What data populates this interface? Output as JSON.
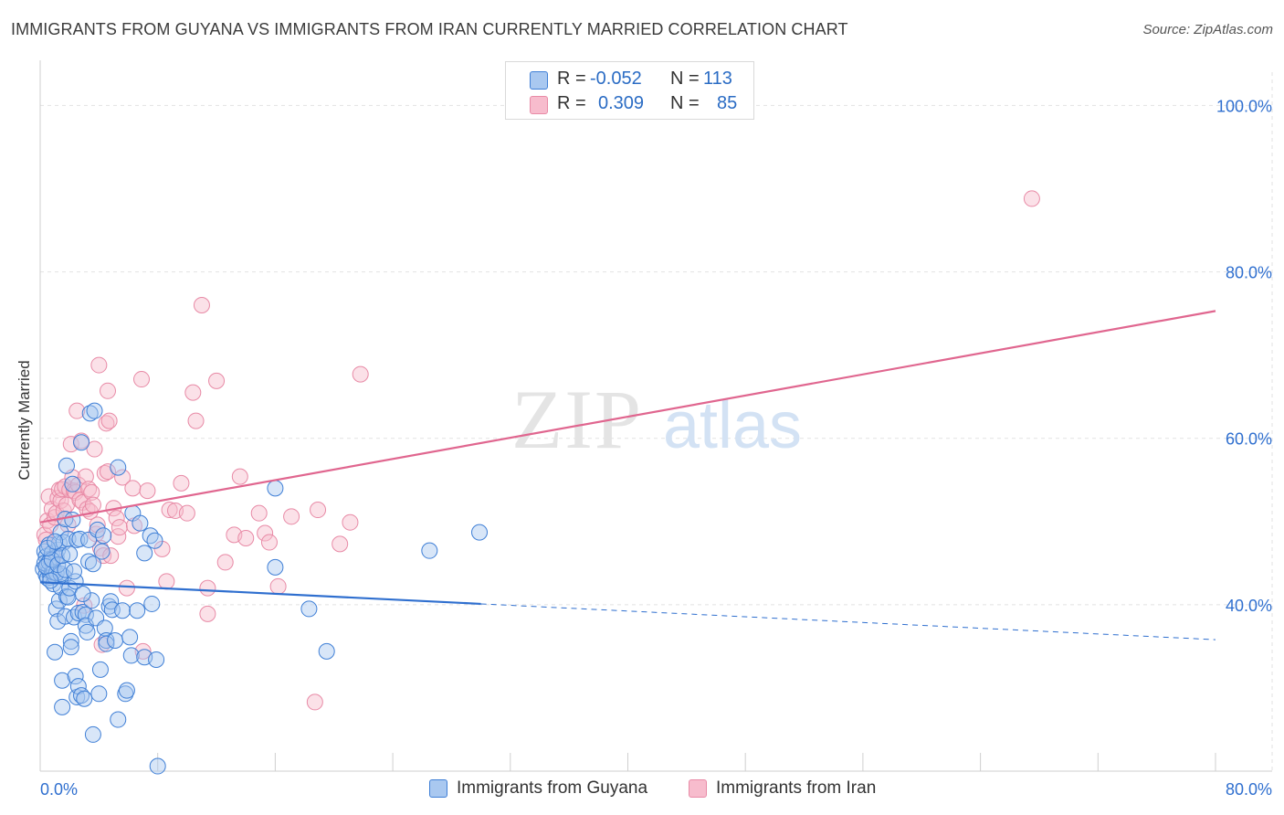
{
  "title": "IMMIGRANTS FROM GUYANA VS IMMIGRANTS FROM IRAN CURRENTLY MARRIED CORRELATION CHART",
  "source": "Source: ZipAtlas.com",
  "watermark": {
    "zip": "ZIP",
    "atlas": "atlas"
  },
  "legend": {
    "guyana": {
      "r_label": "R =",
      "r_value": "-0.052",
      "n_label": "N =",
      "n_value": "113"
    },
    "iran": {
      "r_label": "R =",
      "r_value": "0.309",
      "n_label": "N =",
      "n_value": "85"
    }
  },
  "colors": {
    "guyana_fill": "#a9c8f0",
    "guyana_stroke": "#3f7fd6",
    "guyana_line": "#2f6fcf",
    "iran_fill": "#f7bccd",
    "iran_stroke": "#e88aa6",
    "iran_line": "#e0668f",
    "axis_text": "#2f6fcf",
    "grid": "#e2e2e2"
  },
  "chart_data": {
    "type": "scatter",
    "title": "IMMIGRANTS FROM GUYANA VS IMMIGRANTS FROM IRAN CURRENTLY MARRIED CORRELATION CHART",
    "xlabel": "",
    "ylabel": "Currently Married",
    "xlim": [
      0,
      80
    ],
    "ylim": [
      20,
      104
    ],
    "x_tick_labels": [
      "0.0%",
      "80.0%"
    ],
    "y_tick_labels": [
      "40.0%",
      "60.0%",
      "80.0%",
      "100.0%"
    ],
    "y_ticks": [
      40,
      60,
      80,
      100
    ],
    "grid": true,
    "legend_position": "bottom",
    "series": [
      {
        "name": "Immigrants from Guyana",
        "points": [
          [
            0.2,
            44.3
          ],
          [
            0.3,
            46.4
          ],
          [
            0.4,
            45.8
          ],
          [
            0.4,
            43.6
          ],
          [
            0.5,
            44.9
          ],
          [
            0.5,
            43.2
          ],
          [
            0.6,
            47.2
          ],
          [
            0.6,
            44.1
          ],
          [
            0.7,
            43.3
          ],
          [
            0.7,
            45.5
          ],
          [
            0.8,
            44.0
          ],
          [
            0.8,
            46.2
          ],
          [
            0.9,
            42.5
          ],
          [
            0.9,
            44.4
          ],
          [
            1.0,
            43.4
          ],
          [
            1.0,
            34.3
          ],
          [
            1.1,
            45.7
          ],
          [
            1.1,
            39.5
          ],
          [
            1.2,
            38.0
          ],
          [
            1.2,
            46.6
          ],
          [
            1.3,
            40.5
          ],
          [
            1.3,
            47.4
          ],
          [
            1.4,
            42.1
          ],
          [
            1.4,
            48.7
          ],
          [
            1.5,
            30.9
          ],
          [
            1.5,
            27.7
          ],
          [
            1.6,
            43.4
          ],
          [
            1.6,
            47.5
          ],
          [
            1.7,
            38.6
          ],
          [
            1.7,
            50.3
          ],
          [
            1.8,
            41.0
          ],
          [
            1.8,
            56.7
          ],
          [
            1.9,
            40.9
          ],
          [
            1.9,
            47.9
          ],
          [
            2.0,
            42.0
          ],
          [
            2.1,
            35.6
          ],
          [
            2.1,
            34.9
          ],
          [
            2.2,
            50.2
          ],
          [
            2.2,
            54.5
          ],
          [
            2.3,
            38.5
          ],
          [
            2.4,
            42.8
          ],
          [
            2.4,
            31.4
          ],
          [
            2.5,
            47.8
          ],
          [
            2.5,
            28.9
          ],
          [
            2.6,
            39.0
          ],
          [
            2.6,
            30.2
          ],
          [
            2.7,
            47.9
          ],
          [
            2.8,
            29.1
          ],
          [
            2.8,
            59.5
          ],
          [
            2.9,
            39.1
          ],
          [
            3.0,
            28.7
          ],
          [
            3.1,
            38.8
          ],
          [
            3.1,
            37.5
          ],
          [
            3.2,
            36.7
          ],
          [
            3.3,
            47.8
          ],
          [
            3.3,
            45.2
          ],
          [
            3.4,
            63.0
          ],
          [
            3.5,
            40.5
          ],
          [
            3.6,
            24.4
          ],
          [
            3.7,
            63.3
          ],
          [
            3.8,
            38.4
          ],
          [
            3.9,
            49.0
          ],
          [
            4.0,
            29.3
          ],
          [
            4.1,
            32.2
          ],
          [
            4.2,
            46.4
          ],
          [
            4.3,
            48.3
          ],
          [
            4.4,
            37.2
          ],
          [
            4.5,
            35.7
          ],
          [
            4.5,
            35.3
          ],
          [
            4.7,
            39.8
          ],
          [
            4.8,
            40.4
          ],
          [
            4.9,
            39.4
          ],
          [
            5.1,
            35.7
          ],
          [
            5.3,
            26.2
          ],
          [
            5.3,
            56.5
          ],
          [
            5.6,
            39.3
          ],
          [
            5.8,
            29.3
          ],
          [
            5.9,
            29.7
          ],
          [
            6.1,
            36.1
          ],
          [
            6.2,
            33.9
          ],
          [
            6.3,
            51.0
          ],
          [
            6.6,
            39.3
          ],
          [
            6.8,
            49.8
          ],
          [
            7.1,
            46.2
          ],
          [
            7.1,
            33.7
          ],
          [
            7.5,
            48.3
          ],
          [
            7.6,
            40.1
          ],
          [
            7.9,
            33.4
          ],
          [
            7.8,
            47.7
          ],
          [
            16.0,
            44.5
          ],
          [
            16.0,
            54.0
          ],
          [
            18.3,
            39.5
          ],
          [
            19.5,
            34.4
          ],
          [
            26.5,
            46.5
          ],
          [
            29.9,
            48.7
          ],
          [
            8.0,
            20.6
          ],
          [
            0.3,
            45.0
          ],
          [
            0.6,
            45.1
          ],
          [
            0.9,
            43.9
          ],
          [
            1.1,
            43.8
          ],
          [
            1.4,
            43.7
          ],
          [
            0.4,
            44.6
          ],
          [
            0.8,
            45.4
          ],
          [
            1.2,
            44.8
          ],
          [
            0.5,
            46.8
          ],
          [
            1.0,
            47.6
          ],
          [
            1.7,
            44.2
          ],
          [
            2.3,
            44.0
          ],
          [
            1.5,
            45.9
          ],
          [
            0.7,
            42.9
          ],
          [
            2.0,
            46.1
          ],
          [
            2.9,
            41.3
          ],
          [
            3.6,
            44.9
          ]
        ],
        "trend": {
          "x0": 0,
          "y0": 42.7,
          "x1": 30,
          "y1": 40.1,
          "x_dashed_end": 80,
          "y_dashed_end": 35.8
        }
      },
      {
        "name": "Immigrants from Iran",
        "points": [
          [
            0.3,
            48.4
          ],
          [
            0.4,
            47.8
          ],
          [
            0.5,
            50.1
          ],
          [
            0.6,
            53.0
          ],
          [
            0.7,
            49.6
          ],
          [
            0.8,
            51.5
          ],
          [
            0.9,
            45.7
          ],
          [
            1.0,
            50.5
          ],
          [
            1.1,
            51.0
          ],
          [
            1.2,
            52.8
          ],
          [
            1.3,
            53.8
          ],
          [
            1.4,
            52.5
          ],
          [
            1.5,
            53.9
          ],
          [
            1.6,
            51.3
          ],
          [
            1.7,
            54.2
          ],
          [
            1.8,
            52.0
          ],
          [
            1.9,
            49.6
          ],
          [
            2.0,
            53.8
          ],
          [
            2.1,
            59.3
          ],
          [
            2.2,
            55.3
          ],
          [
            2.3,
            53.7
          ],
          [
            2.4,
            53.5
          ],
          [
            2.5,
            63.3
          ],
          [
            2.6,
            54.4
          ],
          [
            2.7,
            52.6
          ],
          [
            2.8,
            59.7
          ],
          [
            2.9,
            52.3
          ],
          [
            3.0,
            39.9
          ],
          [
            3.1,
            55.4
          ],
          [
            3.2,
            51.5
          ],
          [
            3.3,
            53.9
          ],
          [
            3.4,
            51.2
          ],
          [
            3.5,
            53.5
          ],
          [
            3.6,
            52.0
          ],
          [
            3.7,
            58.7
          ],
          [
            3.8,
            48.5
          ],
          [
            3.9,
            49.6
          ],
          [
            4.0,
            68.8
          ],
          [
            4.1,
            46.8
          ],
          [
            4.2,
            35.2
          ],
          [
            4.3,
            45.9
          ],
          [
            4.4,
            55.8
          ],
          [
            4.5,
            61.8
          ],
          [
            4.6,
            65.7
          ],
          [
            4.6,
            56.0
          ],
          [
            4.7,
            62.1
          ],
          [
            4.8,
            45.9
          ],
          [
            5.0,
            51.6
          ],
          [
            5.2,
            50.4
          ],
          [
            5.3,
            48.2
          ],
          [
            5.4,
            49.3
          ],
          [
            5.6,
            55.3
          ],
          [
            6.3,
            54.0
          ],
          [
            6.4,
            49.5
          ],
          [
            6.9,
            67.1
          ],
          [
            7.0,
            34.4
          ],
          [
            7.3,
            53.7
          ],
          [
            8.3,
            46.7
          ],
          [
            8.6,
            42.8
          ],
          [
            8.8,
            51.4
          ],
          [
            9.2,
            51.3
          ],
          [
            9.6,
            54.6
          ],
          [
            10.0,
            51.0
          ],
          [
            10.4,
            65.5
          ],
          [
            10.6,
            62.1
          ],
          [
            11.0,
            76.0
          ],
          [
            11.4,
            42.0
          ],
          [
            11.4,
            38.9
          ],
          [
            12.0,
            66.9
          ],
          [
            12.6,
            45.1
          ],
          [
            13.2,
            48.4
          ],
          [
            13.6,
            55.4
          ],
          [
            14.0,
            48.0
          ],
          [
            14.9,
            51.0
          ],
          [
            15.3,
            48.6
          ],
          [
            15.6,
            47.5
          ],
          [
            16.2,
            42.2
          ],
          [
            17.1,
            50.6
          ],
          [
            18.7,
            28.3
          ],
          [
            18.9,
            51.4
          ],
          [
            20.4,
            47.3
          ],
          [
            21.1,
            49.9
          ],
          [
            21.8,
            67.7
          ],
          [
            67.5,
            88.8
          ],
          [
            5.9,
            42.0
          ]
        ],
        "trend": {
          "x0": 0,
          "y0": 49.9,
          "x1": 80,
          "y1": 75.3
        }
      }
    ]
  },
  "bottom_legend": {
    "guyana": "Immigrants from Guyana",
    "iran": "Immigrants from Iran"
  }
}
